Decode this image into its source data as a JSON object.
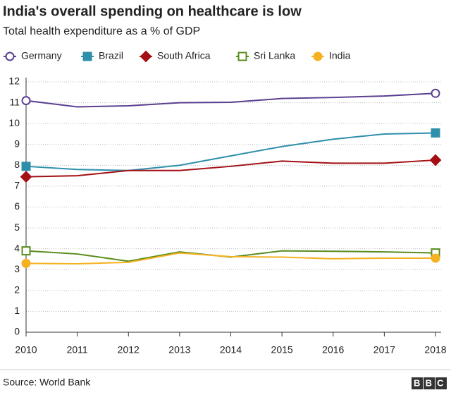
{
  "chart_data": {
    "type": "line",
    "title": "India's overall spending on healthcare is low",
    "subtitle": "Total health expenditure as a % of GDP",
    "source": "Source: World Bank",
    "branding": "BBC",
    "x": [
      2010,
      2011,
      2012,
      2013,
      2014,
      2015,
      2016,
      2017,
      2018
    ],
    "xlim": [
      2010,
      2018
    ],
    "xticks": [
      2010,
      2011,
      2012,
      2013,
      2014,
      2015,
      2016,
      2017,
      2018
    ],
    "ylim": [
      0,
      12
    ],
    "yticks": [
      0,
      1,
      2,
      3,
      4,
      5,
      6,
      7,
      8,
      9,
      10,
      11,
      12
    ],
    "grid": true,
    "legend": "top",
    "series": [
      {
        "name": "Germany",
        "color": "#5b3e8f",
        "marker": "open-circle",
        "values": [
          11.1,
          10.8,
          10.85,
          11.0,
          11.02,
          11.2,
          11.25,
          11.32,
          11.45
        ]
      },
      {
        "name": "Brazil",
        "color": "#2e8fab",
        "marker": "square",
        "values": [
          7.95,
          7.8,
          7.75,
          8.0,
          8.45,
          8.9,
          9.25,
          9.5,
          9.55
        ]
      },
      {
        "name": "South Africa",
        "color": "#a30f14",
        "marker": "diamond",
        "values": [
          7.45,
          7.5,
          7.75,
          7.75,
          7.95,
          8.2,
          8.1,
          8.1,
          8.25
        ]
      },
      {
        "name": "Sri Lanka",
        "color": "#588c1c",
        "marker": "open-square",
        "values": [
          3.9,
          3.75,
          3.4,
          3.85,
          3.6,
          3.9,
          3.88,
          3.85,
          3.8
        ]
      },
      {
        "name": "India",
        "color": "#f5b120",
        "marker": "circle",
        "values": [
          3.3,
          3.28,
          3.35,
          3.8,
          3.62,
          3.6,
          3.52,
          3.55,
          3.55
        ]
      }
    ]
  }
}
